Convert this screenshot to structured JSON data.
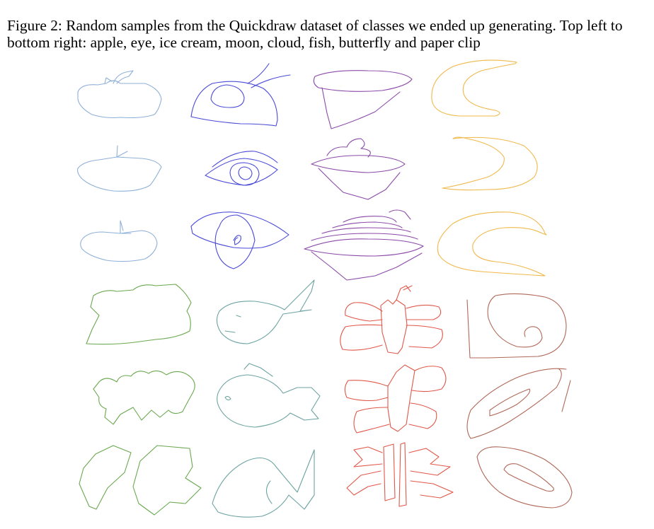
{
  "caption": {
    "label": "Figure 2:",
    "text": "Random samples from the Quickdraw dataset of classes we ended up generating. Top left to bottom right: apple, eye, ice cream, moon, cloud, fish, butterfly and paper clip"
  },
  "classes": [
    {
      "name": "apple",
      "color": "#8fb0d8"
    },
    {
      "name": "eye",
      "color": "#4a4ad8"
    },
    {
      "name": "ice cream",
      "color": "#8b4aa8"
    },
    {
      "name": "moon",
      "color": "#f0b84a"
    },
    {
      "name": "cloud",
      "color": "#6aa84f"
    },
    {
      "name": "fish",
      "color": "#6ba3a0"
    },
    {
      "name": "butterfly",
      "color": "#e0584a"
    },
    {
      "name": "paper clip",
      "color": "#b06858"
    }
  ],
  "layout": {
    "rows_per_class": 3
  }
}
